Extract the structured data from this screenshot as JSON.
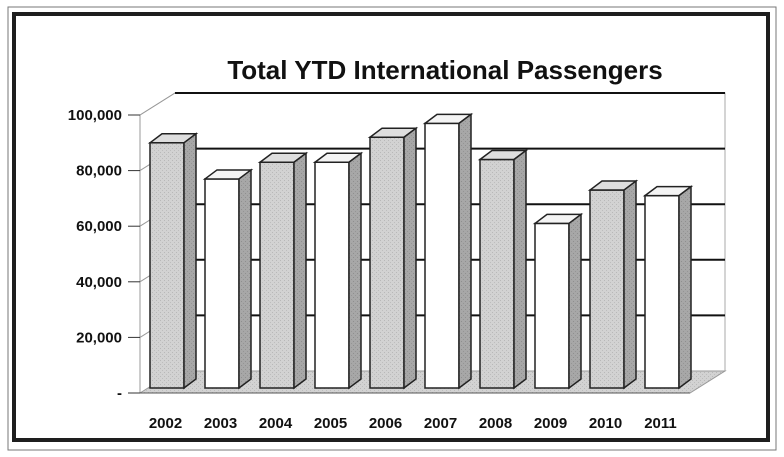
{
  "chart_data": {
    "type": "bar",
    "title": "Total YTD International Passengers",
    "xlabel": "",
    "ylabel": "",
    "categories": [
      "2002",
      "2003",
      "2004",
      "2005",
      "2006",
      "2007",
      "2008",
      "2009",
      "2010",
      "2011"
    ],
    "values": [
      90000,
      77000,
      83000,
      83000,
      92000,
      97000,
      84000,
      61000,
      73000,
      71000
    ],
    "ylim": [
      0,
      100000
    ],
    "y_ticks": [
      0,
      20000,
      40000,
      60000,
      80000,
      100000
    ],
    "y_tick_labels": [
      "-",
      "20,000",
      "40,000",
      "60,000",
      "80,000",
      "100,000"
    ],
    "grid": true,
    "legend": "none",
    "colors": {
      "shaded_bar": "#cfcfcf",
      "white_bar": "#ffffff",
      "frame": "#222222"
    }
  }
}
